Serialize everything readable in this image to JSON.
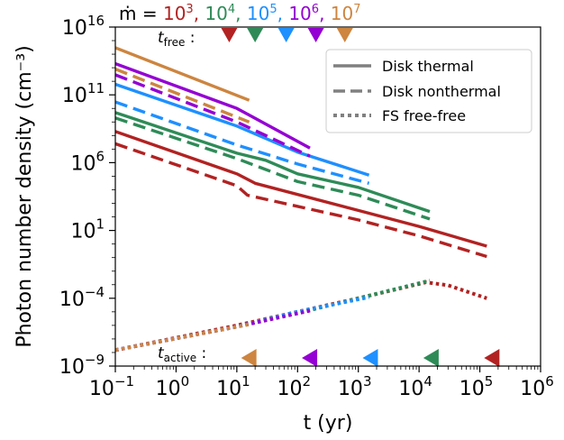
{
  "chart_data": {
    "type": "line",
    "x_scale": "log",
    "y_scale": "log",
    "xlim": [
      0.1,
      1000000
    ],
    "ylim": [
      1e-09,
      1e+16
    ],
    "xlabel": "t (yr)",
    "ylabel": "Photon number density (cm⁻³)",
    "x_ticks": [
      {
        "value": 0.1,
        "base": "10",
        "exp": "−1"
      },
      {
        "value": 1,
        "base": "10",
        "exp": "0"
      },
      {
        "value": 10,
        "base": "10",
        "exp": "1"
      },
      {
        "value": 100,
        "base": "10",
        "exp": "2"
      },
      {
        "value": 1000,
        "base": "10",
        "exp": "3"
      },
      {
        "value": 10000,
        "base": "10",
        "exp": "4"
      },
      {
        "value": 100000,
        "base": "10",
        "exp": "5"
      },
      {
        "value": 1000000,
        "base": "10",
        "exp": "6"
      }
    ],
    "y_ticks": [
      {
        "value": 1e-09,
        "base": "10",
        "exp": "−9"
      },
      {
        "value": 0.0001,
        "base": "10",
        "exp": "−4"
      },
      {
        "value": 10,
        "base": "10",
        "exp": "1"
      },
      {
        "value": 1000000.0,
        "base": "10",
        "exp": "6"
      },
      {
        "value": 100000000000.0,
        "base": "10",
        "exp": "11"
      },
      {
        "value": 1e+16,
        "base": "10",
        "exp": "16"
      }
    ],
    "top_annotation": {
      "prefix": "ṁ = ",
      "items": [
        {
          "base": "10",
          "exp": "3",
          "color": "#b22222"
        },
        {
          "base": "10",
          "exp": "4",
          "color": "#2e8b57"
        },
        {
          "base": "10",
          "exp": "5",
          "color": "#1e90ff"
        },
        {
          "base": "10",
          "exp": "6",
          "color": "#9400d3"
        },
        {
          "base": "10",
          "exp": "7",
          "color": "#cd853f"
        }
      ],
      "separator": ","
    },
    "t_free_label": {
      "main": "t",
      "sub": "free",
      "suffix": " :"
    },
    "t_active_label": {
      "main": "t",
      "sub": "active",
      "suffix": " :"
    },
    "legend": {
      "placement": "top-right",
      "entries": [
        {
          "label": "Disk thermal",
          "style": "solid"
        },
        {
          "label": "Disk nonthermal",
          "style": "dashed"
        },
        {
          "label": "FS free-free",
          "style": "dotted"
        }
      ]
    },
    "series": [
      {
        "mdot": "1e3",
        "color": "#b22222",
        "t_free": 7.5,
        "t_active": 160000,
        "thermal": [
          [
            0.1,
            200000000.0
          ],
          [
            10,
            150000.0
          ],
          [
            20,
            30000.0
          ],
          [
            1000,
            300
          ],
          [
            10000,
            20
          ],
          [
            130000,
            0.7
          ]
        ],
        "nonthermal": [
          [
            0.1,
            25000000.0
          ],
          [
            10,
            20000.0
          ],
          [
            15,
            4000.0
          ],
          [
            1000,
            60
          ],
          [
            10000,
            4
          ],
          [
            130000,
            0.12
          ]
        ],
        "freefree": [
          [
            0.1,
            1.5e-08
          ],
          [
            10,
            1e-06
          ],
          [
            100,
            1e-05
          ],
          [
            1000,
            0.0001
          ],
          [
            13000,
            0.0015
          ],
          [
            30000,
            0.0009
          ],
          [
            130000,
            0.0001
          ]
        ]
      },
      {
        "mdot": "1e4",
        "color": "#2e8b57",
        "t_free": 20,
        "t_active": 16000,
        "thermal": [
          [
            0.1,
            5000000000.0
          ],
          [
            10,
            5000000.0
          ],
          [
            30,
            1500000.0
          ],
          [
            100,
            150000.0
          ],
          [
            1000,
            15000.0
          ],
          [
            15000,
            250
          ]
        ],
        "nonthermal": [
          [
            0.1,
            2000000000.0
          ],
          [
            10,
            2000000.0
          ],
          [
            100,
            40000.0
          ],
          [
            1000,
            4000.0
          ],
          [
            15000,
            70
          ]
        ],
        "freefree": [
          [
            0.1,
            1.5e-08
          ],
          [
            10,
            8e-07
          ],
          [
            100,
            8e-06
          ],
          [
            1000,
            0.0001
          ],
          [
            15000,
            0.002
          ]
        ]
      },
      {
        "mdot": "1e5",
        "color": "#1e90ff",
        "t_free": 65,
        "t_active": 1600,
        "thermal": [
          [
            0.1,
            600000000000.0
          ],
          [
            10,
            500000000.0
          ],
          [
            100,
            6000000.0
          ],
          [
            1500,
            120000.0
          ]
        ],
        "nonthermal": [
          [
            0.1,
            30000000000.0
          ],
          [
            10,
            20000000.0
          ],
          [
            100,
            800000.0
          ],
          [
            1500,
            30000.0
          ]
        ],
        "freefree": [
          [
            0.1,
            1.5e-08
          ],
          [
            10,
            8e-07
          ],
          [
            100,
            1e-05
          ],
          [
            1500,
            0.00012
          ]
        ]
      },
      {
        "mdot": "1e6",
        "color": "#9400d3",
        "t_free": 200,
        "t_active": 160,
        "thermal": [
          [
            0.1,
            20000000000000.0
          ],
          [
            10,
            10000000000.0
          ],
          [
            160,
            12000000.0
          ]
        ],
        "nonthermal": [
          [
            0.1,
            3000000000000.0
          ],
          [
            10,
            1000000000.0
          ],
          [
            160,
            3000000.0
          ]
        ],
        "freefree": [
          [
            0.1,
            1.5e-08
          ],
          [
            10,
            8e-07
          ],
          [
            160,
            1.2e-05
          ]
        ]
      },
      {
        "mdot": "1e7",
        "color": "#cd853f",
        "t_free": 600,
        "t_active": 16,
        "thermal": [
          [
            0.1,
            300000000000000.0
          ],
          [
            16,
            40000000000.0
          ]
        ],
        "nonthermal": [
          [
            0.1,
            8000000000000.0
          ],
          [
            16,
            1000000000.0
          ]
        ],
        "freefree": [
          [
            0.1,
            1.5e-08
          ],
          [
            16,
            1.2e-06
          ]
        ]
      }
    ],
    "grid": false
  }
}
